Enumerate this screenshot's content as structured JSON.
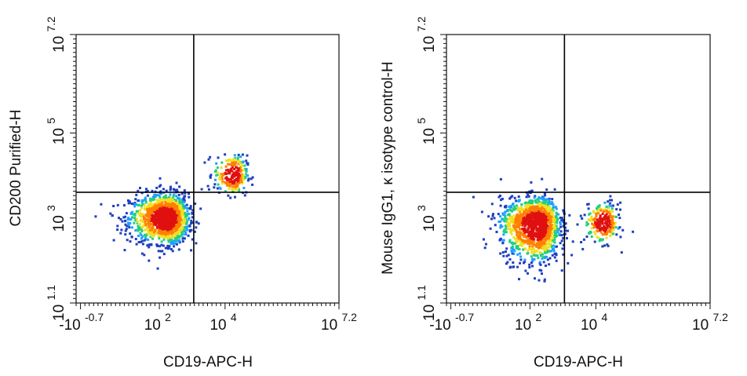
{
  "chart_data": [
    {
      "type": "scatter",
      "subtype": "flow-cytometry-density-plot",
      "xlabel": "CD19-APC-H",
      "ylabel": "CD200 Purified-H",
      "x_scale": "biexponential",
      "y_scale": "log",
      "xlim": [
        "-10^-0.7",
        "10^7.2"
      ],
      "ylim": [
        "10^1.1",
        "10^7.2"
      ],
      "x_ticks": [
        {
          "base": "-10",
          "exp": "-0.7"
        },
        {
          "base": "10",
          "exp": "2"
        },
        {
          "base": "10",
          "exp": "4"
        },
        {
          "base": "10",
          "exp": "7.2"
        }
      ],
      "y_ticks": [
        {
          "base": "10",
          "exp": "1.1"
        },
        {
          "base": "10",
          "exp": "3"
        },
        {
          "base": "10",
          "exp": "5"
        },
        {
          "base": "10",
          "exp": "7.2"
        }
      ],
      "quadrant_gate": {
        "x_log10": 3.1,
        "y_log10": 3.6
      },
      "populations": [
        {
          "label": "CD19-",
          "x_log10_center": 2.3,
          "y_log10_center": 3.0,
          "relative_size": "large"
        },
        {
          "label": "CD19+",
          "x_log10_center": 4.3,
          "y_log10_center": 4.0,
          "relative_size": "small"
        }
      ],
      "colormap": [
        "#1f3fbf",
        "#1fa0ff",
        "#20d080",
        "#f0e020",
        "#ff8000",
        "#e01010"
      ]
    },
    {
      "type": "scatter",
      "subtype": "flow-cytometry-density-plot",
      "xlabel": "CD19-APC-H",
      "ylabel": "Mouse IgG1, κ isotype control-H",
      "x_scale": "biexponential",
      "y_scale": "log",
      "xlim": [
        "-10^-0.7",
        "10^7.2"
      ],
      "ylim": [
        "10^1.1",
        "10^7.2"
      ],
      "x_ticks": [
        {
          "base": "-10",
          "exp": "-0.7"
        },
        {
          "base": "10",
          "exp": "2"
        },
        {
          "base": "10",
          "exp": "4"
        },
        {
          "base": "10",
          "exp": "7.2"
        }
      ],
      "y_ticks": [
        {
          "base": "10",
          "exp": "1.1"
        },
        {
          "base": "10",
          "exp": "3"
        },
        {
          "base": "10",
          "exp": "5"
        },
        {
          "base": "10",
          "exp": "7.2"
        }
      ],
      "quadrant_gate": {
        "x_log10": 3.1,
        "y_log10": 3.6
      },
      "populations": [
        {
          "label": "CD19-",
          "x_log10_center": 2.3,
          "y_log10_center": 2.9,
          "relative_size": "large"
        },
        {
          "label": "CD19+",
          "x_log10_center": 4.3,
          "y_log10_center": 2.9,
          "relative_size": "small"
        }
      ],
      "colormap": [
        "#1f3fbf",
        "#1fa0ff",
        "#20d080",
        "#f0e020",
        "#ff8000",
        "#e01010"
      ]
    }
  ]
}
